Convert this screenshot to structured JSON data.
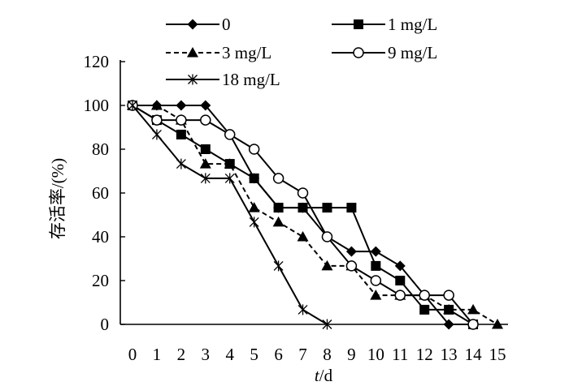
{
  "chart_data": {
    "type": "line",
    "xlabel_italic": "t",
    "xlabel_rest": "/d",
    "ylabel": "存活率/(%)",
    "xlim": [
      0,
      15
    ],
    "ylim": [
      0,
      120
    ],
    "x_ticks": [
      "0",
      "1",
      "2",
      "3",
      "4",
      "5",
      "6",
      "7",
      "8",
      "9",
      "10",
      "11",
      "12",
      "13",
      "14",
      "15"
    ],
    "y_ticks": [
      "0",
      "20",
      "40",
      "60",
      "80",
      "100",
      "120"
    ],
    "grid": false,
    "legend_position": "top",
    "series": [
      {
        "name": "0",
        "marker": "diamond-filled",
        "line": "solid",
        "x": [
          0,
          1,
          2,
          3,
          4,
          5,
          6,
          7,
          8,
          9,
          10,
          11,
          12,
          13,
          14
        ],
        "y": [
          100,
          100,
          100,
          100,
          86.7,
          66.7,
          53.3,
          53.3,
          40,
          33.3,
          33.3,
          26.7,
          13.3,
          0,
          0
        ]
      },
      {
        "name": "1 mg/L",
        "marker": "square-filled",
        "line": "solid",
        "x": [
          0,
          1,
          2,
          3,
          4,
          5,
          6,
          7,
          8,
          9,
          10,
          11,
          12,
          13,
          14
        ],
        "y": [
          100,
          93.3,
          86.7,
          80,
          73.3,
          66.7,
          53.3,
          53.3,
          53.3,
          53.3,
          26.7,
          20,
          6.7,
          6.7,
          0
        ]
      },
      {
        "name": "3 mg/L",
        "marker": "triangle-filled",
        "line": "dashed",
        "x": [
          0,
          1,
          2,
          3,
          4,
          5,
          6,
          7,
          8,
          9,
          10,
          11,
          12,
          13,
          14,
          15
        ],
        "y": [
          100,
          100,
          93.3,
          73.3,
          73.3,
          53.3,
          46.7,
          40,
          26.7,
          26.7,
          13.3,
          13.3,
          13.3,
          6.7,
          6.7,
          0
        ]
      },
      {
        "name": "9 mg/L",
        "marker": "circle-open",
        "line": "solid",
        "x": [
          0,
          1,
          2,
          3,
          4,
          5,
          6,
          7,
          8,
          9,
          10,
          11,
          12,
          13,
          14
        ],
        "y": [
          100,
          93.3,
          93.3,
          93.3,
          86.7,
          80,
          66.7,
          60,
          40,
          26.7,
          20,
          13.3,
          13.3,
          13.3,
          0
        ]
      },
      {
        "name": "18 mg/L",
        "marker": "star",
        "line": "solid",
        "x": [
          0,
          1,
          2,
          3,
          4,
          5,
          6,
          7,
          8
        ],
        "y": [
          100,
          86.7,
          73.3,
          66.7,
          66.7,
          46.7,
          26.7,
          6.7,
          0
        ]
      }
    ]
  }
}
